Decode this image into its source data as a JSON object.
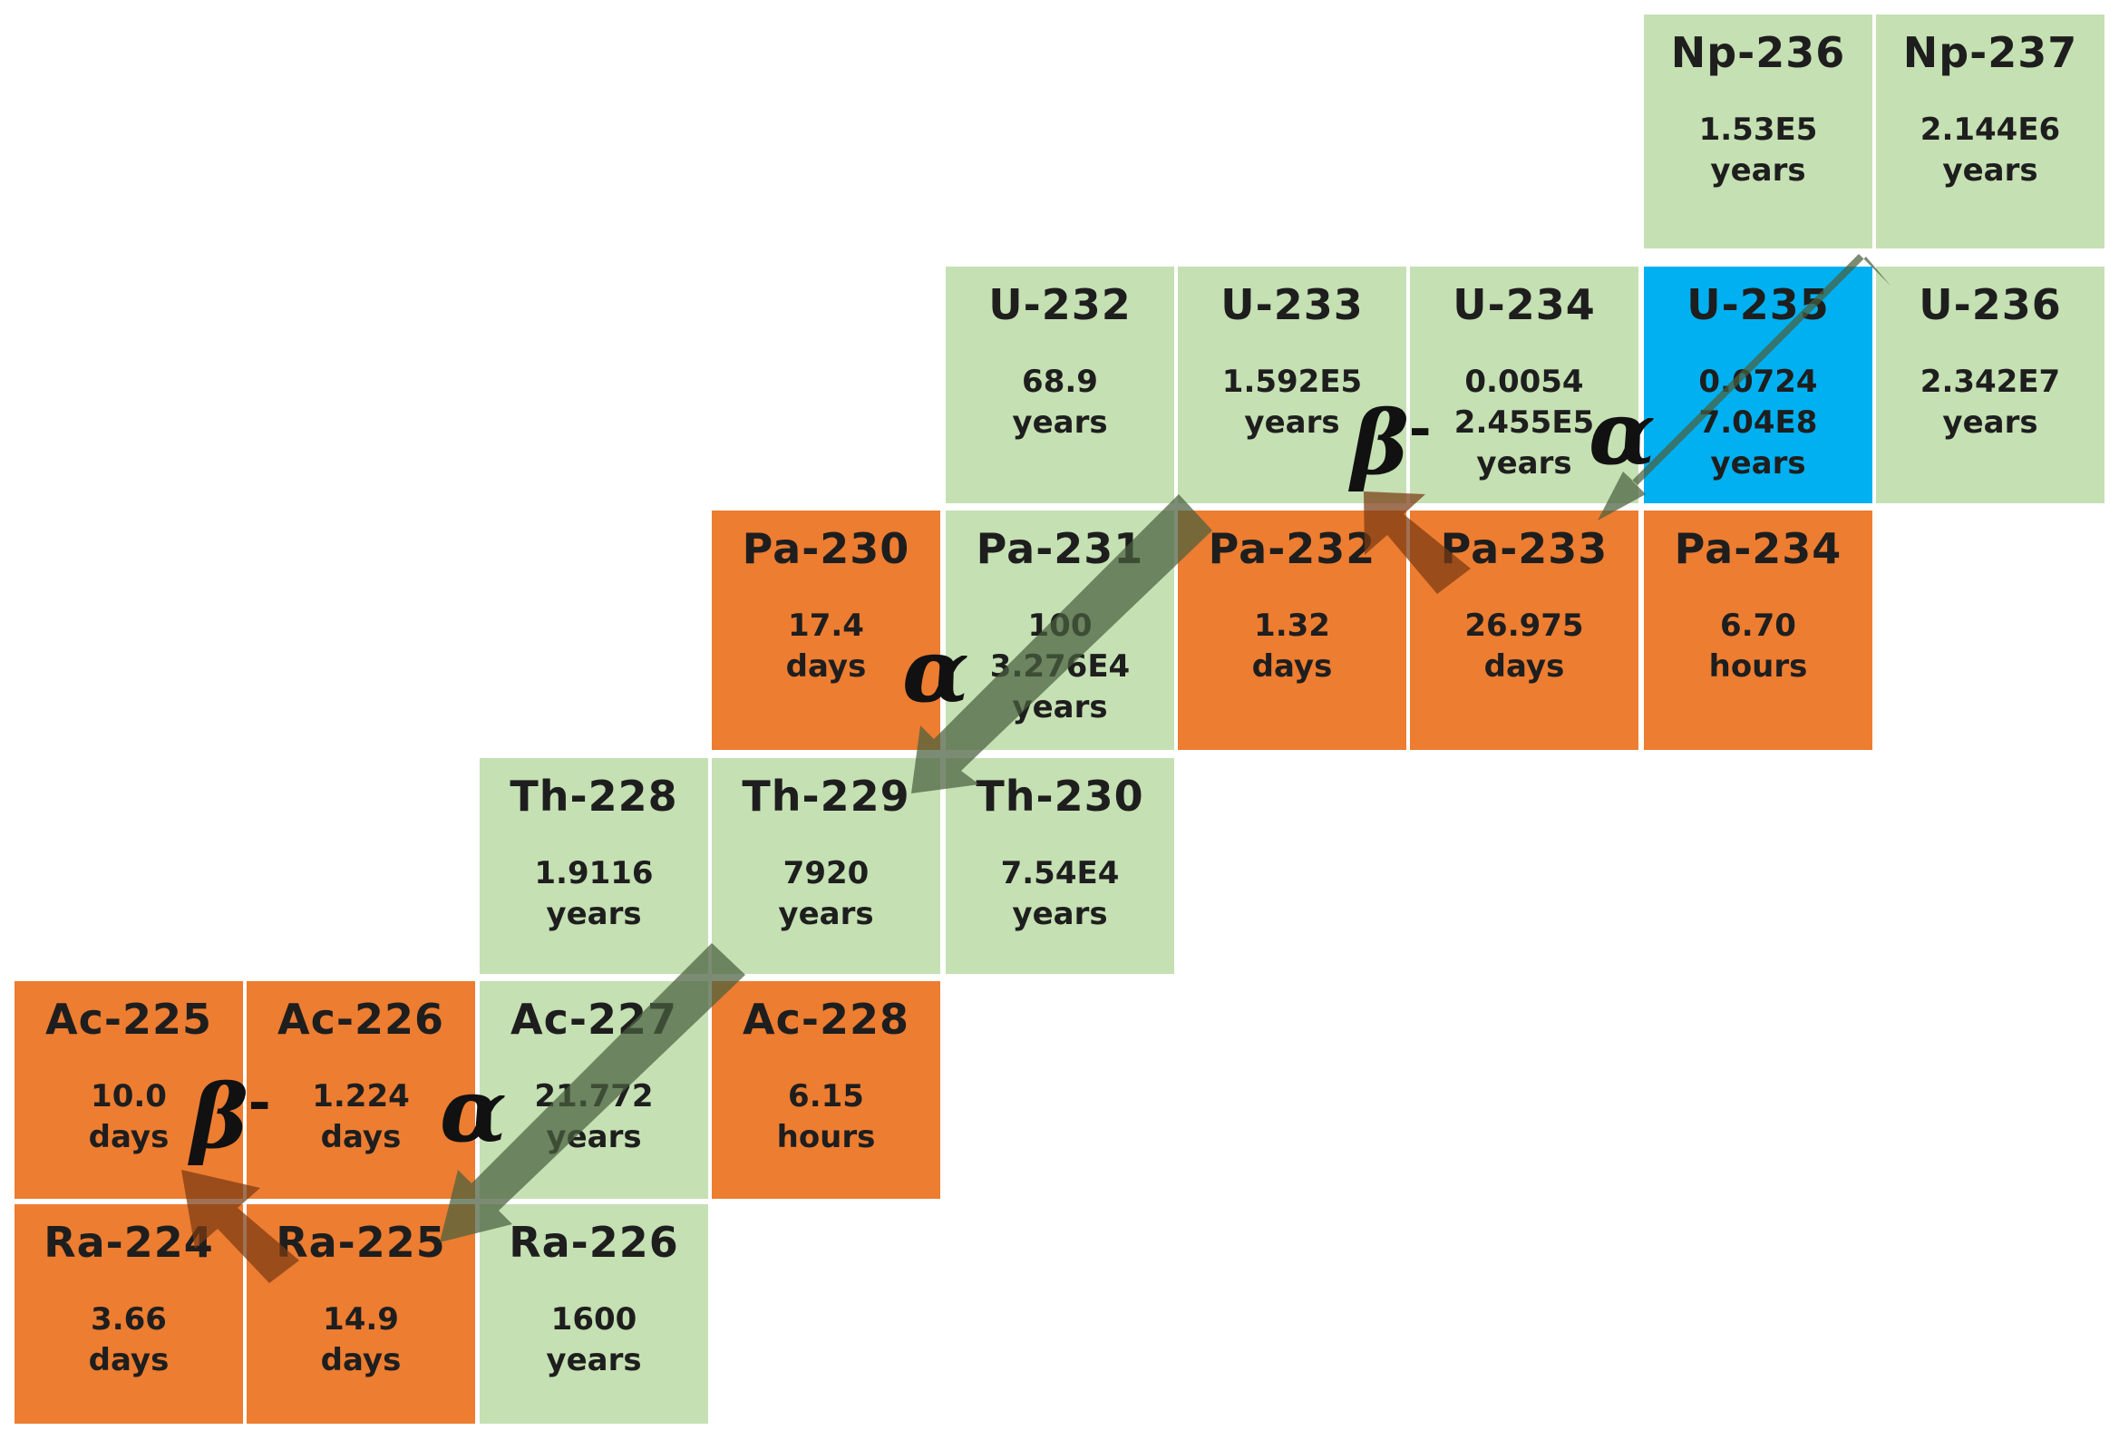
{
  "colors": {
    "long_lived": "#c5e0b3",
    "short_lived": "#ed7d31",
    "start_nuclide": "#00b0f0",
    "alpha_arrow": "#4a5f3f",
    "beta_arrow": "#7a3a14"
  },
  "nuclides": [
    {
      "id": "np236",
      "name": "Np-236",
      "half_life": [
        "1.53E5",
        "years"
      ],
      "type": "long"
    },
    {
      "id": "np237",
      "name": "Np-237",
      "half_life": [
        "2.144E6",
        "years"
      ],
      "type": "long"
    },
    {
      "id": "u232",
      "name": "U-232",
      "half_life": [
        "68.9",
        "years"
      ],
      "type": "long"
    },
    {
      "id": "u233",
      "name": "U-233",
      "half_life": [
        "1.592E5",
        "years"
      ],
      "type": "long"
    },
    {
      "id": "u234",
      "name": "U-234",
      "half_life": [
        "0.0054",
        "2.455E5",
        "years"
      ],
      "type": "long"
    },
    {
      "id": "u235",
      "name": "U-235",
      "half_life": [
        "0.0724",
        "7.04E8",
        "years"
      ],
      "type": "start"
    },
    {
      "id": "u236",
      "name": "U-236",
      "half_life": [
        "2.342E7",
        "years"
      ],
      "type": "long"
    },
    {
      "id": "pa230",
      "name": "Pa-230",
      "half_life": [
        "17.4",
        "days"
      ],
      "type": "short"
    },
    {
      "id": "pa231",
      "name": "Pa-231",
      "half_life": [
        "100",
        "3.276E4",
        "years"
      ],
      "type": "long"
    },
    {
      "id": "pa232",
      "name": "Pa-232",
      "half_life": [
        "1.32",
        "days"
      ],
      "type": "short"
    },
    {
      "id": "pa233",
      "name": "Pa-233",
      "half_life": [
        "26.975",
        "days"
      ],
      "type": "short"
    },
    {
      "id": "pa234",
      "name": "Pa-234",
      "half_life": [
        "6.70",
        "hours"
      ],
      "type": "short"
    },
    {
      "id": "th228",
      "name": "Th-228",
      "half_life": [
        "1.9116",
        "years"
      ],
      "type": "long"
    },
    {
      "id": "th229",
      "name": "Th-229",
      "half_life": [
        "7920",
        "years"
      ],
      "type": "long"
    },
    {
      "id": "th230",
      "name": "Th-230",
      "half_life": [
        "7.54E4",
        "years"
      ],
      "type": "long"
    },
    {
      "id": "ac225",
      "name": "Ac-225",
      "half_life": [
        "10.0",
        "days"
      ],
      "type": "short"
    },
    {
      "id": "ac226",
      "name": "Ac-226",
      "half_life": [
        "1.224",
        "days"
      ],
      "type": "short"
    },
    {
      "id": "ac227",
      "name": "Ac-227",
      "half_life": [
        "21.772",
        "years"
      ],
      "type": "long"
    },
    {
      "id": "ac228",
      "name": "Ac-228",
      "half_life": [
        "6.15",
        "hours"
      ],
      "type": "short"
    },
    {
      "id": "ra224",
      "name": "Ra-224",
      "half_life": [
        "3.66",
        "days"
      ],
      "type": "short"
    },
    {
      "id": "ra225",
      "name": "Ra-225",
      "half_life": [
        "14.9",
        "days"
      ],
      "type": "short"
    },
    {
      "id": "ra226",
      "name": "Ra-226",
      "half_life": [
        "1600",
        "years"
      ],
      "type": "long"
    }
  ],
  "decays": [
    {
      "id": "np237-pa233",
      "mode": "alpha",
      "label": "α"
    },
    {
      "id": "pa233-u233",
      "mode": "beta",
      "label": "β",
      "sup": "-"
    },
    {
      "id": "u233-th229",
      "mode": "alpha",
      "label": "α"
    },
    {
      "id": "th229-ra225",
      "mode": "alpha",
      "label": "α"
    },
    {
      "id": "ra225-ac225",
      "mode": "beta",
      "label": "β",
      "sup": "-"
    }
  ]
}
